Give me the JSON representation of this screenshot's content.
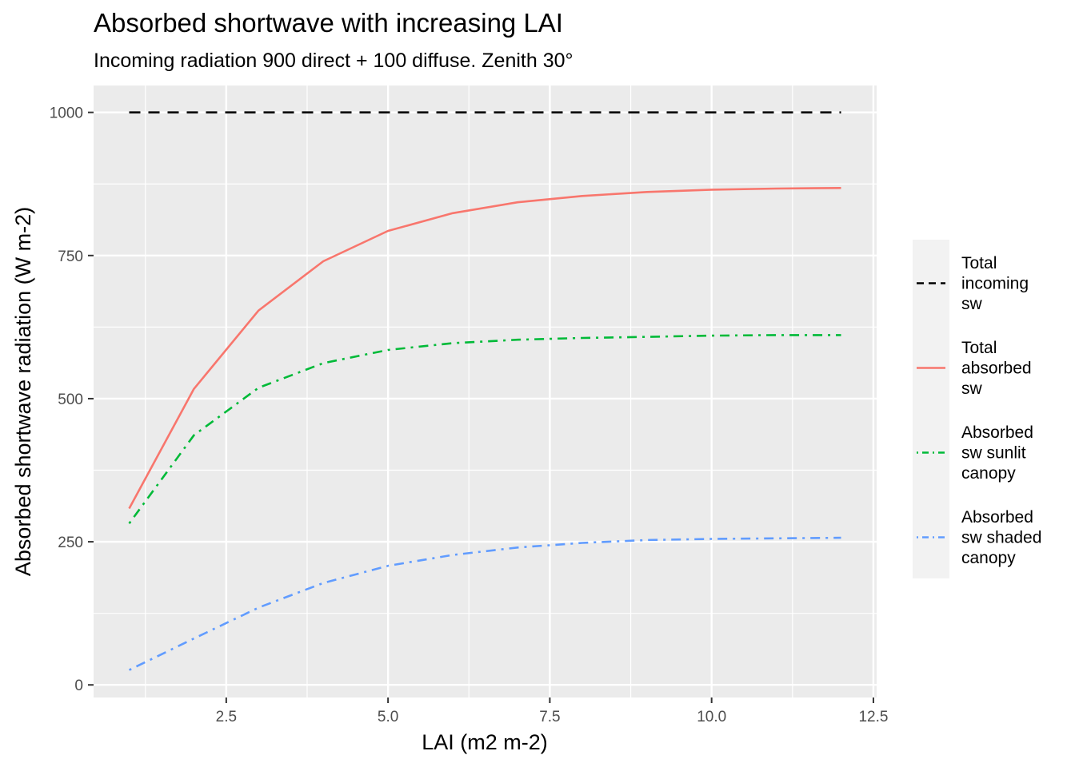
{
  "chart_data": {
    "type": "line",
    "title": "Absorbed shortwave with increasing LAI",
    "subtitle": "Incoming radiation 900 direct + 100 diffuse. Zenith 30°",
    "xlabel": "LAI (m2 m-2)",
    "ylabel": "Absorbed shortwave radiation (W m-2)",
    "xlim": [
      0.45,
      12.55
    ],
    "ylim": [
      -22,
      1047
    ],
    "x_ticks": [
      2.5,
      5.0,
      7.5,
      10.0,
      12.5
    ],
    "x_tick_labels": [
      "2.5",
      "5.0",
      "7.5",
      "10.0",
      "12.5"
    ],
    "y_ticks": [
      0,
      250,
      500,
      750,
      1000
    ],
    "y_tick_labels": [
      "0",
      "250",
      "500",
      "750",
      "1000"
    ],
    "grid": true,
    "legend_position": "right",
    "x": [
      1,
      2,
      3,
      4,
      5,
      6,
      7,
      8,
      9,
      10,
      11,
      12
    ],
    "series": [
      {
        "name": [
          "Total",
          "incoming",
          "sw"
        ],
        "color": "#000000",
        "dash": "longdash",
        "values": [
          1000,
          1000,
          1000,
          1000,
          1000,
          1000,
          1000,
          1000,
          1000,
          1000,
          1000,
          1000
        ]
      },
      {
        "name": [
          "Total",
          "absorbed",
          "sw"
        ],
        "color": "#F8766D",
        "dash": "solid",
        "values": [
          308,
          517,
          654,
          740,
          793,
          824,
          843,
          854,
          861,
          865,
          867,
          868
        ]
      },
      {
        "name": [
          "Absorbed",
          "sw sunlit",
          "canopy"
        ],
        "color": "#00BA38",
        "dash": "dotdash",
        "values": [
          282,
          436,
          519,
          562,
          585,
          597,
          603,
          606,
          608,
          610,
          611,
          611
        ]
      },
      {
        "name": [
          "Absorbed",
          "sw shaded",
          "canopy"
        ],
        "color": "#619CFF",
        "dash": "dotdash",
        "values": [
          26,
          81,
          135,
          178,
          208,
          227,
          240,
          248,
          253,
          255,
          256,
          257
        ]
      }
    ]
  }
}
